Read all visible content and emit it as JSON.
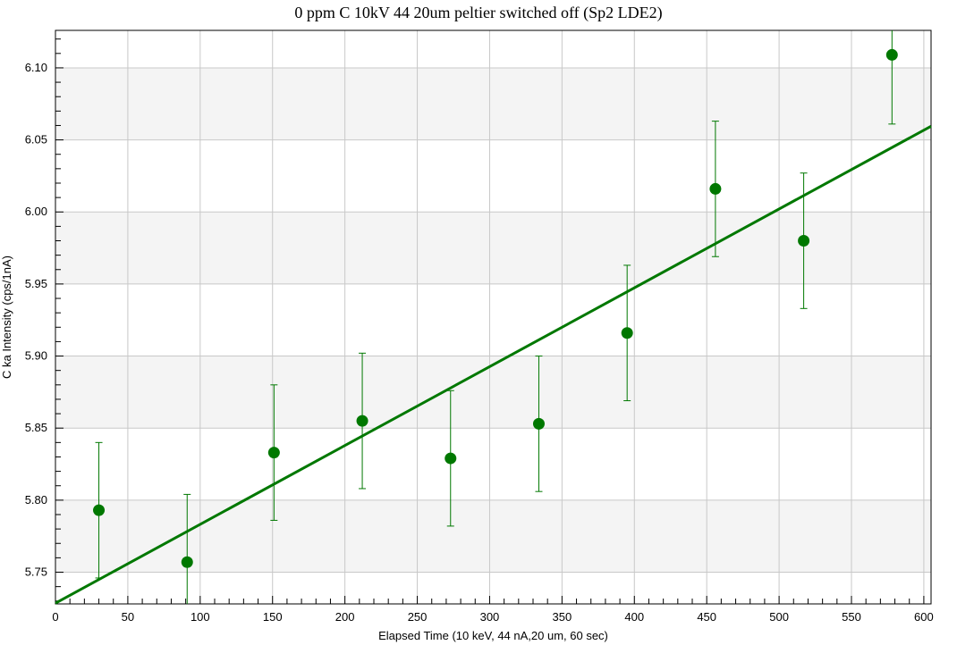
{
  "chart_data": {
    "type": "scatter",
    "title": "0 ppm C 10kV 44 20um peltier switched off (Sp2 LDE2)",
    "xlabel": "Elapsed Time (10 keV, 44 nA,20 um, 60 sec)",
    "ylabel": "C ka Intensity (cps/1nA)",
    "xlim": [
      0,
      605
    ],
    "ylim": [
      5.728,
      6.126
    ],
    "x_ticks": [
      0,
      50,
      100,
      150,
      200,
      250,
      300,
      350,
      400,
      450,
      500,
      550,
      600
    ],
    "y_ticks": [
      5.75,
      5.8,
      5.85,
      5.9,
      5.95,
      6.0,
      6.05,
      6.1
    ],
    "y_tick_labels": [
      "5.75",
      "5.80",
      "5.85",
      "5.90",
      "5.95",
      "6.00",
      "6.05",
      "6.10"
    ],
    "grid": true,
    "background_bands": "alternating light gray horizontal bands",
    "colors": {
      "series": "#007800",
      "grid": "#c8c8c8",
      "band": "#f4f4f4"
    },
    "series": [
      {
        "marker": "circle",
        "x": [
          30,
          91,
          151,
          212,
          273,
          334,
          395,
          456,
          517,
          578
        ],
        "y": [
          5.793,
          5.757,
          5.833,
          5.855,
          5.829,
          5.853,
          5.916,
          6.016,
          5.98,
          6.109
        ],
        "error": [
          0.047,
          0.047,
          0.047,
          0.047,
          0.047,
          0.047,
          0.047,
          0.047,
          0.047,
          0.048
        ]
      }
    ],
    "fit_line": {
      "type": "linear",
      "x": [
        0,
        605
      ],
      "y": [
        5.7285,
        6.0595
      ]
    }
  }
}
